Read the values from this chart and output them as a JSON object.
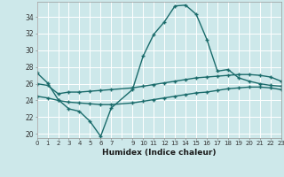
{
  "xlabel": "Humidex (Indice chaleur)",
  "bg_color": "#cde8ea",
  "grid_color": "#ffffff",
  "line_color": "#1a6b6b",
  "xlim": [
    0,
    23
  ],
  "ylim": [
    19.5,
    35.8
  ],
  "yticks": [
    20,
    22,
    24,
    26,
    28,
    30,
    32,
    34
  ],
  "xticks": [
    0,
    1,
    2,
    3,
    4,
    5,
    6,
    7,
    9,
    10,
    11,
    12,
    13,
    14,
    15,
    16,
    17,
    18,
    19,
    20,
    21,
    22,
    23
  ],
  "line1_x": [
    0,
    1,
    2,
    3,
    4,
    5,
    6,
    7,
    9,
    10,
    11,
    12,
    13,
    14,
    15,
    16,
    17,
    18,
    19,
    20,
    21,
    22,
    23
  ],
  "line1_y": [
    27.3,
    26.1,
    24.1,
    23.0,
    22.7,
    21.5,
    19.7,
    23.1,
    25.3,
    29.3,
    31.9,
    33.4,
    35.3,
    35.4,
    34.3,
    31.3,
    27.5,
    27.7,
    26.7,
    26.3,
    26.0,
    25.8,
    25.7
  ],
  "line2_x": [
    0,
    1,
    2,
    3,
    4,
    5,
    6,
    7,
    9,
    10,
    11,
    12,
    13,
    14,
    15,
    16,
    17,
    18,
    19,
    20,
    21,
    22,
    23
  ],
  "line2_y": [
    26.0,
    25.8,
    24.8,
    25.0,
    25.0,
    25.1,
    25.2,
    25.3,
    25.5,
    25.7,
    25.9,
    26.1,
    26.3,
    26.5,
    26.7,
    26.8,
    26.9,
    27.0,
    27.1,
    27.1,
    27.0,
    26.8,
    26.3
  ],
  "line3_x": [
    0,
    1,
    2,
    3,
    4,
    5,
    6,
    7,
    9,
    10,
    11,
    12,
    13,
    14,
    15,
    16,
    17,
    18,
    19,
    20,
    21,
    22,
    23
  ],
  "line3_y": [
    24.5,
    24.3,
    24.0,
    23.8,
    23.7,
    23.6,
    23.5,
    23.5,
    23.7,
    23.9,
    24.1,
    24.3,
    24.5,
    24.7,
    24.9,
    25.0,
    25.2,
    25.4,
    25.5,
    25.6,
    25.6,
    25.5,
    25.3
  ],
  "marker": "D",
  "markersize": 2.5,
  "linewidth": 1.0
}
